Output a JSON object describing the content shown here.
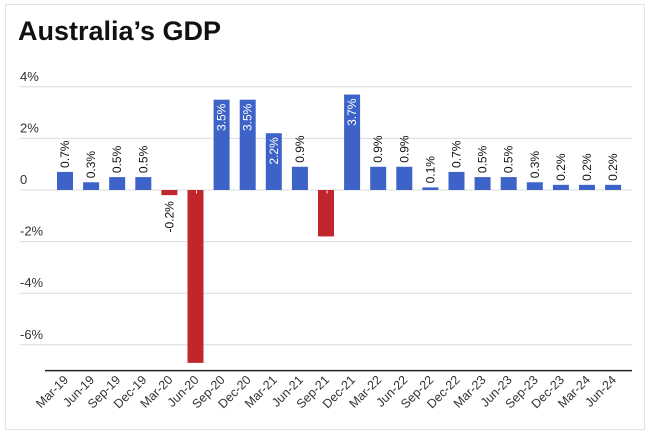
{
  "chart_data": {
    "type": "bar",
    "title": "Australia’s GDP",
    "categories": [
      "Mar-19",
      "Jun-19",
      "Sep-19",
      "Dec-19",
      "Mar-20",
      "Jun-20",
      "Sep-20",
      "Dec-20",
      "Mar-21",
      "Jun-21",
      "Sep-21",
      "Dec-21",
      "Mar-22",
      "Jun-22",
      "Sep-22",
      "Dec-22",
      "Mar-23",
      "Jun-23",
      "Sep-23",
      "Dec-23",
      "Mar-24",
      "Jun-24"
    ],
    "values": [
      0.7,
      0.3,
      0.5,
      0.5,
      -0.2,
      -6.7,
      3.5,
      3.5,
      2.2,
      0.9,
      -1.8,
      3.7,
      0.9,
      0.9,
      0.1,
      0.7,
      0.5,
      0.5,
      0.3,
      0.2,
      0.2,
      0.2
    ],
    "data_labels": [
      "0.7%",
      "0.3%",
      "0.5%",
      "0.5%",
      "-0.2%",
      "-6.7%",
      "3.5%",
      "3.5%",
      "2.2%",
      "0.9%",
      "-1.8%",
      "3.7%",
      "0.9%",
      "0.9%",
      "0.1%",
      "0.7%",
      "0.5%",
      "0.5%",
      "0.3%",
      "0.2%",
      "0.2%",
      "0.2%"
    ],
    "y_ticks": [
      4,
      2,
      0,
      -2,
      -4,
      -6
    ],
    "y_tick_labels": [
      "4%",
      "2%",
      "0",
      "-2%",
      "-4%",
      "-6%"
    ],
    "ylim": [
      -7.0,
      4.3
    ],
    "grid": true,
    "legend": "none",
    "xlabel": "",
    "ylabel": "",
    "colors": {
      "positive": "#3d63c9",
      "negative": "#c0262b",
      "grid": "#dcdcdc",
      "axis": "#222222"
    }
  }
}
